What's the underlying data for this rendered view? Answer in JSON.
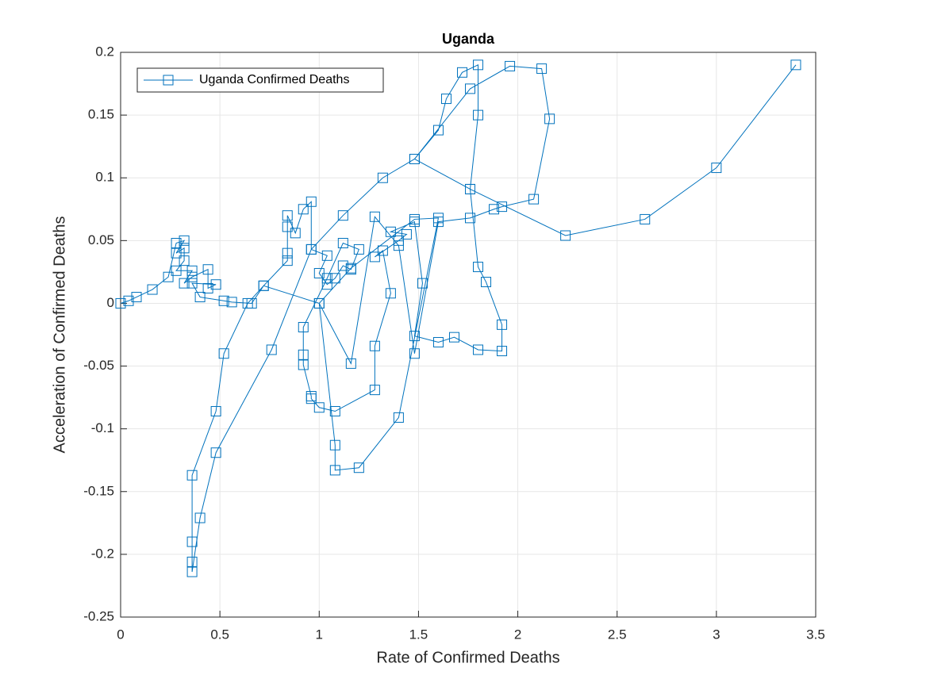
{
  "chart_data": {
    "type": "line",
    "title": "Uganda",
    "xlabel": "Rate of Confirmed Deaths",
    "ylabel": "Acceleration of Confirmed Deaths",
    "xlim": [
      0,
      3.5
    ],
    "ylim": [
      -0.25,
      0.2
    ],
    "xticks": [
      0,
      0.5,
      1,
      1.5,
      2,
      2.5,
      3,
      3.5
    ],
    "yticks": [
      -0.25,
      -0.2,
      -0.15,
      -0.1,
      -0.05,
      0,
      0.05,
      0.1,
      0.15,
      0.2
    ],
    "grid": true,
    "legend": "upper left",
    "marker": "square",
    "series": [
      {
        "name": "Uganda Confirmed Deaths",
        "color": "#0072bd",
        "x": [
          0,
          0.04,
          0.08,
          0.16,
          0.24,
          0.28,
          0.32,
          0.28,
          0.32,
          0.32,
          0.28,
          0.36,
          0.32,
          0.36,
          0.44,
          0.44,
          0.48,
          0.36,
          0.4,
          0.52,
          0.56,
          0.66,
          0.72,
          0.84,
          0.84,
          0.84,
          0.84,
          0.88,
          0.92,
          0.96,
          0.96,
          1.04,
          1.0,
          1.04,
          1.08,
          1.12,
          1.16,
          1.2,
          1.12,
          1.04,
          0.92,
          0.92,
          0.92,
          0.96,
          0.96,
          1.0,
          1.08,
          1.28,
          1.28,
          1.36,
          1.32,
          1.28,
          1.4,
          1.44,
          1.36,
          1.48,
          1.52,
          1.48,
          1.6,
          1.68,
          1.8,
          1.92,
          1.92,
          1.84,
          1.8,
          1.76,
          1.8,
          1.8,
          1.72,
          1.64,
          1.6,
          1.48,
          1.32,
          1.12,
          0.96,
          0.76,
          0.48,
          0.4,
          0.36,
          0.36,
          0.36,
          0.36,
          0.48,
          0.52,
          0.64,
          0.72,
          1.0,
          1.08,
          1.08,
          1.2,
          1.4,
          1.6,
          1.48,
          1.16,
          1.0,
          1.16,
          1.28,
          1.4,
          1.48,
          1.6,
          1.76,
          1.88,
          1.92,
          2.08,
          2.16,
          2.12,
          1.96,
          1.76,
          1.48,
          1.76,
          2.24,
          2.64,
          3.0,
          3.4
        ],
        "y": [
          0,
          0.002,
          0.005,
          0.011,
          0.021,
          0.048,
          0.05,
          0.04,
          0.044,
          0.034,
          0.026,
          0.026,
          0.016,
          0.021,
          0.027,
          0.012,
          0.015,
          0.016,
          0.005,
          0.002,
          0.001,
          0.0,
          0.014,
          0.034,
          0.04,
          0.061,
          0.07,
          0.056,
          0.075,
          0.081,
          0.043,
          0.038,
          0.024,
          0.015,
          0.02,
          0.03,
          0.027,
          0.043,
          0.048,
          0.02,
          -0.019,
          -0.041,
          -0.049,
          -0.074,
          -0.076,
          -0.083,
          -0.086,
          -0.069,
          -0.034,
          0.008,
          0.042,
          0.037,
          0.05,
          0.055,
          0.057,
          0.065,
          0.016,
          -0.026,
          -0.031,
          -0.027,
          -0.037,
          -0.038,
          -0.017,
          0.017,
          0.029,
          0.091,
          0.15,
          0.19,
          0.184,
          0.163,
          0.138,
          0.115,
          0.1,
          0.07,
          0.043,
          -0.037,
          -0.119,
          -0.171,
          -0.214,
          -0.206,
          -0.19,
          -0.137,
          -0.086,
          -0.04,
          0.0,
          0.014,
          0.0,
          -0.113,
          -0.133,
          -0.131,
          -0.091,
          0.068,
          0.067,
          0.028,
          0.0,
          -0.048,
          0.069,
          0.046,
          -0.04,
          0.065,
          0.068,
          0.075,
          0.077,
          0.083,
          0.147,
          0.187,
          0.189,
          0.171,
          0.115,
          0.091,
          0.054,
          0.067,
          0.108,
          0.19
        ]
      }
    ]
  }
}
